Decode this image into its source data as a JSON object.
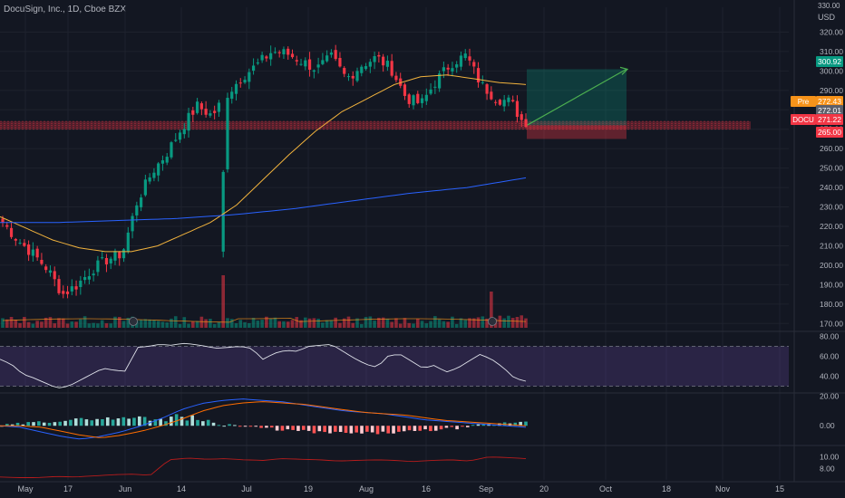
{
  "header": {
    "title": "DocuSign, Inc., 1D, Cboe BZX",
    "currency": "USD"
  },
  "chart_data": [
    {
      "type": "candlestick",
      "pane": "price",
      "title": "",
      "ylim": [
        165,
        330
      ],
      "yticks": [
        170,
        180,
        190,
        200,
        210,
        220,
        230,
        240,
        250,
        260,
        270,
        280,
        290,
        300,
        310,
        320
      ],
      "top_tick_label": "330.00",
      "xticks": [
        "May",
        "17",
        "Jun",
        "14",
        "Jul",
        "19",
        "Aug",
        "16",
        "Sep",
        "20",
        "Oct",
        "18",
        "Nov",
        "15"
      ],
      "close_path": [
        222,
        213,
        206,
        198,
        185,
        190,
        198,
        203,
        206,
        233,
        248,
        258,
        271,
        282,
        277,
        288,
        297,
        303,
        310,
        309,
        305,
        301,
        307,
        296,
        303,
        307,
        301,
        286,
        283,
        295,
        304,
        308,
        293,
        286,
        284,
        271
      ],
      "sma_short": [
        225,
        219,
        213,
        209,
        207,
        207,
        210,
        216,
        222,
        231,
        244,
        257,
        269,
        279,
        286,
        293,
        297,
        298,
        296,
        294,
        293
      ],
      "sma_long": [
        222,
        222,
        223,
        224,
        226,
        229,
        233,
        237,
        240,
        245
      ],
      "price_tags": [
        {
          "label": "",
          "value": "300.92",
          "y": 300.92,
          "color": "#089981"
        },
        {
          "label": "Pre",
          "value": "272.43",
          "y": 272.43,
          "color": "#f7931a"
        },
        {
          "label": "",
          "value": "272.01",
          "y": 272.01,
          "color": "#5d606b"
        },
        {
          "label": "DOCU",
          "value": "271.22",
          "y": 271.22,
          "color": "#f23645"
        },
        {
          "label": "",
          "value": "265.00",
          "y": 265.0,
          "color": "#f23645"
        }
      ],
      "position_tool": {
        "entry": 272.0,
        "target": 300.92,
        "stop": 265.0
      },
      "support_zone": [
        270.0,
        274.0
      ]
    },
    {
      "type": "line",
      "pane": "rsi",
      "title": "",
      "ylim": [
        25,
        85
      ],
      "yticks": [
        80,
        60,
        40
      ],
      "bands": [
        70,
        30
      ],
      "values": [
        57,
        52,
        42,
        38,
        33,
        28,
        30,
        36,
        42,
        48,
        46,
        45,
        69,
        70,
        72,
        71,
        73,
        72,
        70,
        68,
        69,
        70,
        68,
        57,
        63,
        66,
        65,
        70,
        71,
        72,
        65,
        58,
        52,
        49,
        61,
        62,
        55,
        48,
        51,
        44,
        48,
        55,
        62,
        57,
        49,
        38,
        35
      ]
    },
    {
      "type": "bar+line",
      "pane": "macd",
      "title": "",
      "ylim": [
        -12,
        22
      ],
      "yticks": [
        20,
        0
      ],
      "macd_values": [
        0,
        -1,
        -4,
        -7,
        -9,
        -7,
        -4,
        0,
        5,
        11,
        15,
        17,
        18,
        17,
        16,
        14,
        12,
        10,
        9,
        8,
        6,
        4,
        3,
        2,
        1,
        0,
        -1
      ]
    },
    {
      "type": "line",
      "pane": "atr",
      "title": "",
      "ylim": [
        6,
        12
      ],
      "yticks": [
        10,
        8
      ],
      "values": [
        6.5,
        6.4,
        6.4,
        6.6,
        6.5,
        6.7,
        6.9,
        7.0,
        6.8,
        9.5,
        9.8,
        9.6,
        9.7,
        9.5,
        9.4,
        9.7,
        9.6,
        9.5,
        9.3,
        9.4,
        9.5,
        9.4,
        9.2,
        9.4,
        9.5,
        9.3,
        10.0,
        9.9,
        9.7
      ]
    }
  ]
}
